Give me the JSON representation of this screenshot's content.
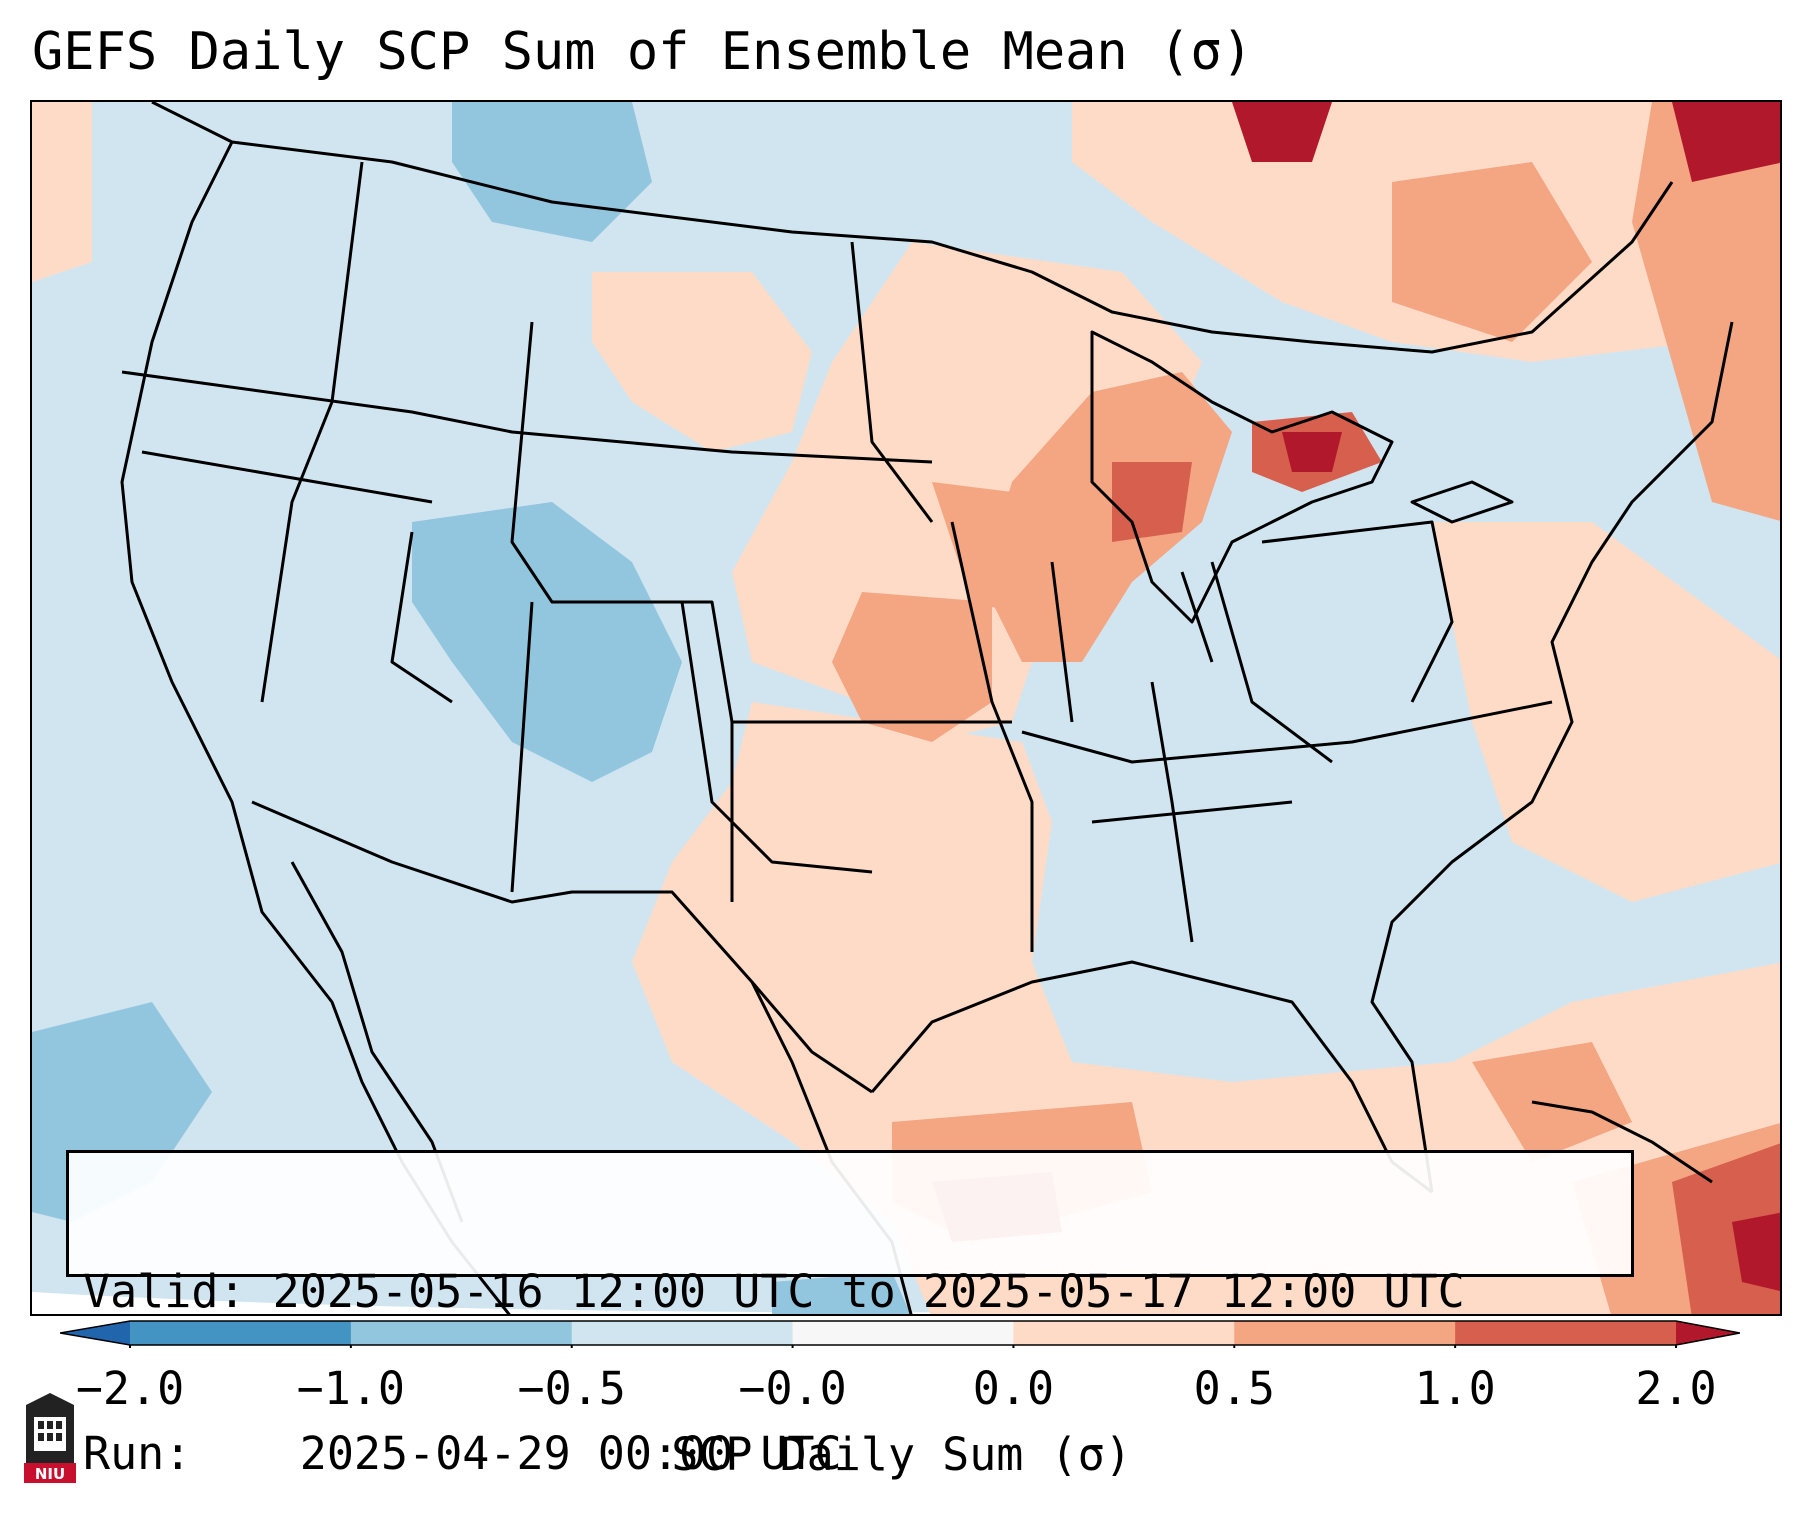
{
  "title": "GEFS Daily SCP Sum of Ensemble Mean (σ)",
  "info": {
    "valid_label": "Valid:",
    "valid_value": "2025-05-16 12:00 UTC to 2025-05-17 12:00 UTC",
    "run_label": "Run:",
    "run_value": "2025-04-29 00:00 UTC"
  },
  "colorbar": {
    "label": "SCP Daily Sum (σ)",
    "ticks": [
      "−2.0",
      "−1.0",
      "−0.5",
      "−0.0",
      "0.0",
      "0.5",
      "1.0",
      "2.0"
    ],
    "colors": [
      "#4393c3",
      "#92c5de",
      "#d1e5f0",
      "#f7f7f7",
      "#fddbc7",
      "#f4a582",
      "#d6604d",
      "#b2182b"
    ],
    "extend": "both"
  },
  "map": {
    "region": "Contiguous United States",
    "background_color": "#d1e5f0",
    "projection": "Lambert conformal"
  },
  "logo": {
    "text": "NIU"
  }
}
